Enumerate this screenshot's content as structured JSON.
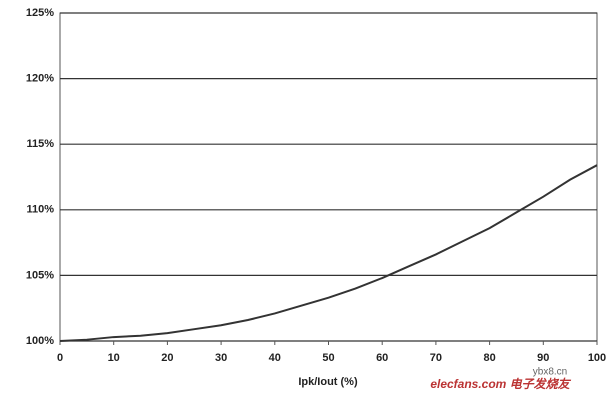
{
  "chart_data": {
    "type": "line",
    "xlabel": "Ipk/Iout (%)",
    "x": [
      0,
      5,
      10,
      15,
      20,
      25,
      30,
      35,
      40,
      45,
      50,
      55,
      60,
      65,
      70,
      75,
      80,
      85,
      90,
      95,
      100
    ],
    "series": [
      {
        "name": null,
        "color": "#333333",
        "values": [
          100,
          100.1,
          100.3,
          100.4,
          100.6,
          100.9,
          101.2,
          101.6,
          102.1,
          102.7,
          103.3,
          104,
          104.8,
          105.7,
          106.6,
          107.6,
          108.6,
          109.8,
          111,
          112.3,
          113.4
        ]
      }
    ],
    "xlim": [
      0,
      100
    ],
    "xticks": [
      0,
      10,
      20,
      30,
      40,
      50,
      60,
      70,
      80,
      90,
      100
    ],
    "ylim": [
      100,
      125
    ],
    "yticks": [
      {
        "value": 100,
        "label": "100%"
      },
      {
        "value": 105,
        "label": "105%"
      },
      {
        "value": 110,
        "label": "110%"
      },
      {
        "value": 115,
        "label": "115%"
      },
      {
        "value": 120,
        "label": "120%"
      },
      {
        "value": 125,
        "label": "125%"
      }
    ],
    "grid": true,
    "watermark": [
      "ybx8.cn",
      "elecfans.com 电子发烧友"
    ]
  }
}
